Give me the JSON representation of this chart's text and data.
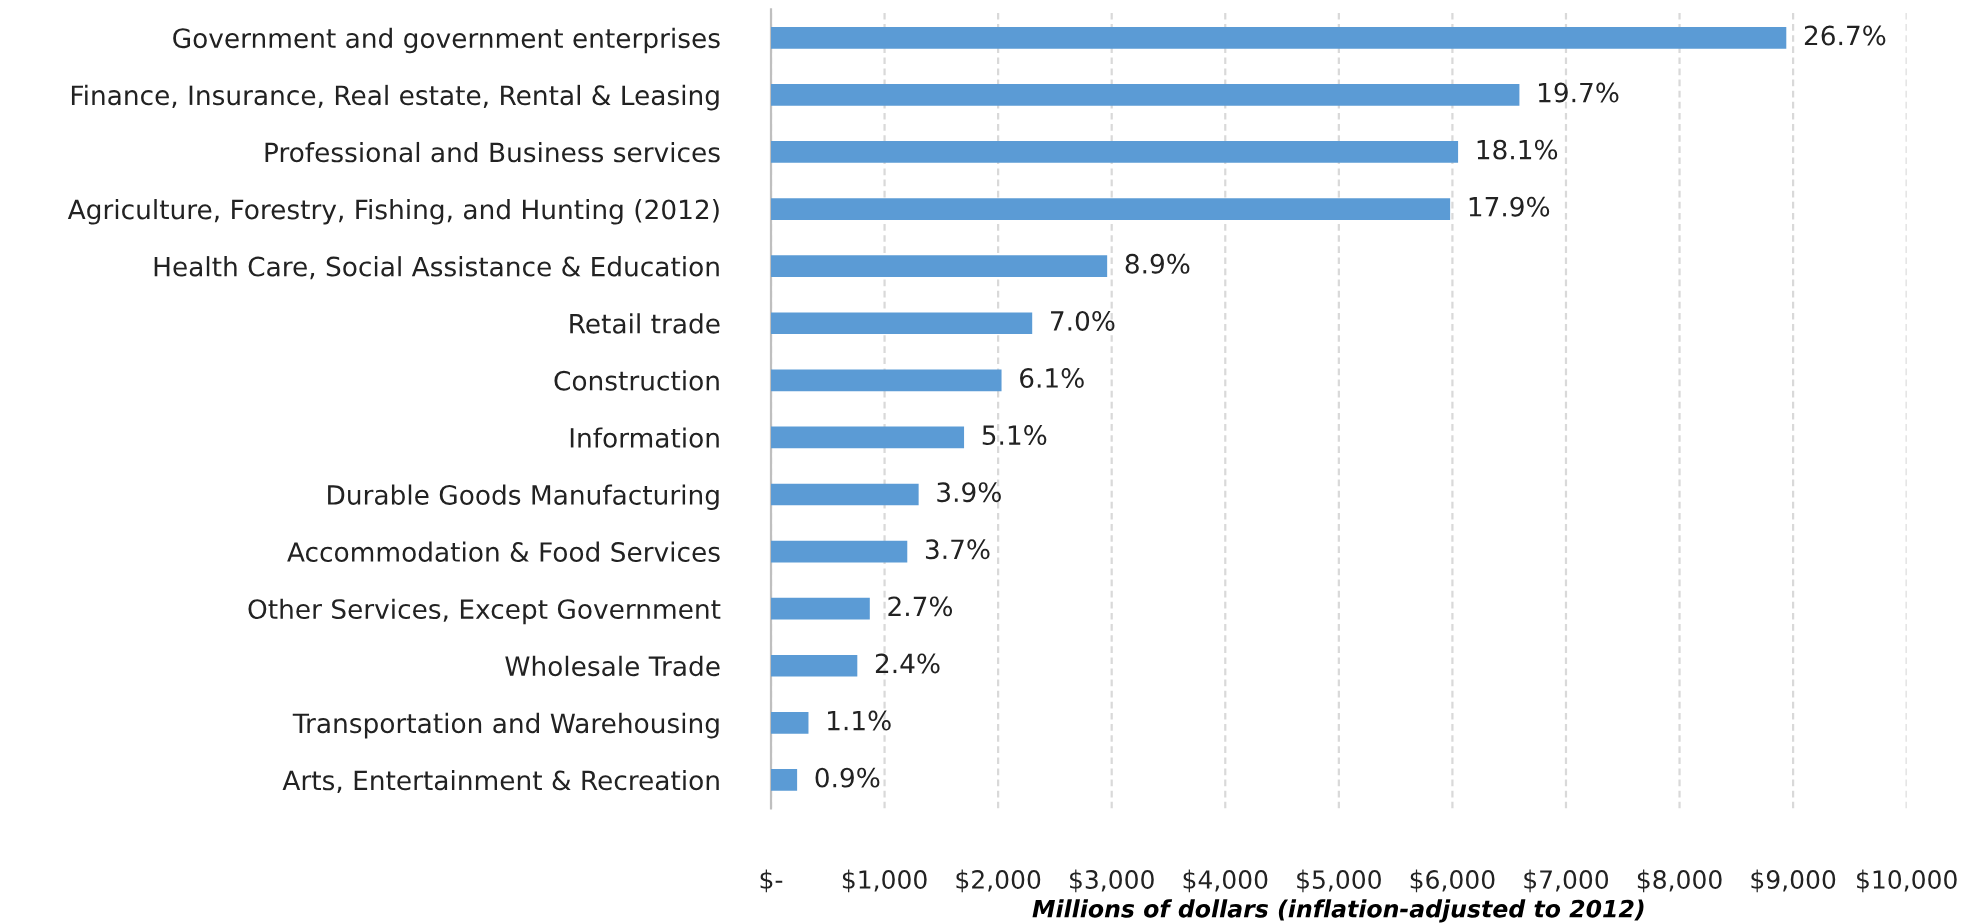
{
  "chart_data": {
    "type": "bar",
    "orientation": "horizontal",
    "categories": [
      "Government and government enterprises",
      "Finance, Insurance, Real estate, Rental & Leasing",
      "Professional and Business services",
      "Agriculture, Forestry, Fishing, and Hunting (2012)",
      "Health Care, Social Assistance & Education",
      "Retail trade",
      "Construction",
      "Information",
      "Durable Goods Manufacturing",
      "Accommodation & Food Services",
      "Other Services, Except Government",
      "Wholesale Trade",
      "Transportation and Warehousing",
      "Arts, Entertainment & Recreation"
    ],
    "values": [
      8940,
      6590,
      6050,
      5980,
      2960,
      2300,
      2030,
      1700,
      1300,
      1200,
      870,
      760,
      330,
      230
    ],
    "annotations": [
      {
        "text": "26.7%",
        "x": 8940,
        "y": "Government and government enterprises"
      },
      {
        "text": "19.7%",
        "x": 6590,
        "y": "Finance, Insurance, Real estate, Rental & Leasing"
      },
      {
        "text": "18.1%",
        "x": 6050,
        "y": "Professional and Business services"
      },
      {
        "text": "17.9%",
        "x": 5980,
        "y": "Agriculture, Forestry, Fishing, and Hunting (2012)"
      },
      {
        "text": "8.9%",
        "x": 2960,
        "y": "Health Care, Social Assistance & Education"
      },
      {
        "text": "7.0%",
        "x": 2300,
        "y": "Retail trade"
      },
      {
        "text": "6.1%",
        "x": 2030,
        "y": "Construction"
      },
      {
        "text": "5.1%",
        "x": 1700,
        "y": "Information"
      },
      {
        "text": "3.9%",
        "x": 1300,
        "y": "Durable Goods Manufacturing"
      },
      {
        "text": "3.7%",
        "x": 1200,
        "y": "Accommodation & Food Services"
      },
      {
        "text": "2.7%",
        "x": 870,
        "y": "Other Services, Except Government"
      },
      {
        "text": "2.4%",
        "x": 760,
        "y": "Wholesale Trade"
      },
      {
        "text": "1.1%",
        "x": 330,
        "y": "Transportation and Warehousing"
      },
      {
        "text": "0.9%",
        "x": 230,
        "y": "Arts, Entertainment & Recreation"
      }
    ],
    "color": "#5b9bd5",
    "xlabel": "Millions of dollars (inflation-adjusted to 2012)",
    "xlim": [
      0,
      10000
    ],
    "xticks": [
      {
        "value": 0,
        "label": "$-"
      },
      {
        "value": 1000,
        "label": "$1,000"
      },
      {
        "value": 2000,
        "label": "$2,000"
      },
      {
        "value": 3000,
        "label": "$3,000"
      },
      {
        "value": 4000,
        "label": "$4,000"
      },
      {
        "value": 5000,
        "label": "$5,000"
      },
      {
        "value": 6000,
        "label": "$6,000"
      },
      {
        "value": 7000,
        "label": "$7,000"
      },
      {
        "value": 8000,
        "label": "$8,000"
      },
      {
        "value": 9000,
        "label": "$9,000"
      },
      {
        "value": 10000,
        "label": "$10,000"
      }
    ],
    "grid": "x"
  }
}
